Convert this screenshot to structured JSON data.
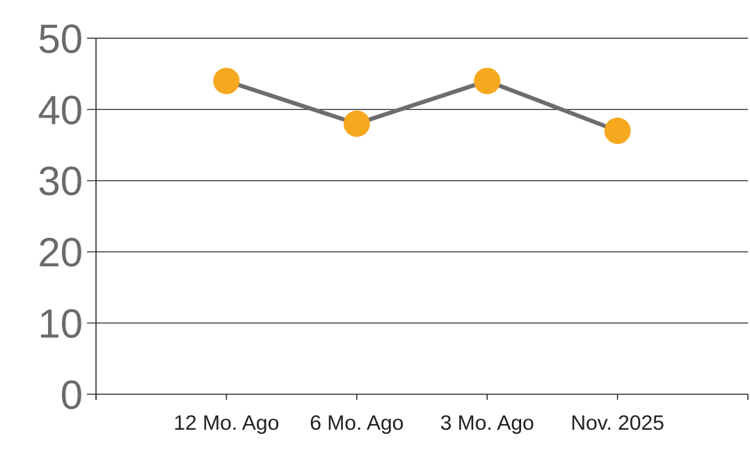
{
  "chart_data": {
    "type": "line",
    "title": "",
    "xlabel": "",
    "ylabel": "",
    "categories": [
      "12 Mo. Ago",
      "6 Mo. Ago",
      "3 Mo. Ago",
      "Nov. 2025"
    ],
    "series": [
      {
        "name": "series-1",
        "values": [
          44,
          38,
          44,
          37
        ]
      }
    ],
    "ylim": [
      0,
      50
    ],
    "yticks": [
      0,
      10,
      20,
      30,
      40,
      50
    ],
    "grid": "horizontal",
    "legend_position": "none",
    "marker_shape": "circle",
    "colors": {
      "marker": "#F6A81E",
      "line": "#6D6D6D",
      "gridline": "#2E2E2E",
      "axis": "#2E2E2E",
      "y_tick_label": "#6A6A6A",
      "x_tick_label": "#222222",
      "background": "#FFFFFF"
    }
  }
}
